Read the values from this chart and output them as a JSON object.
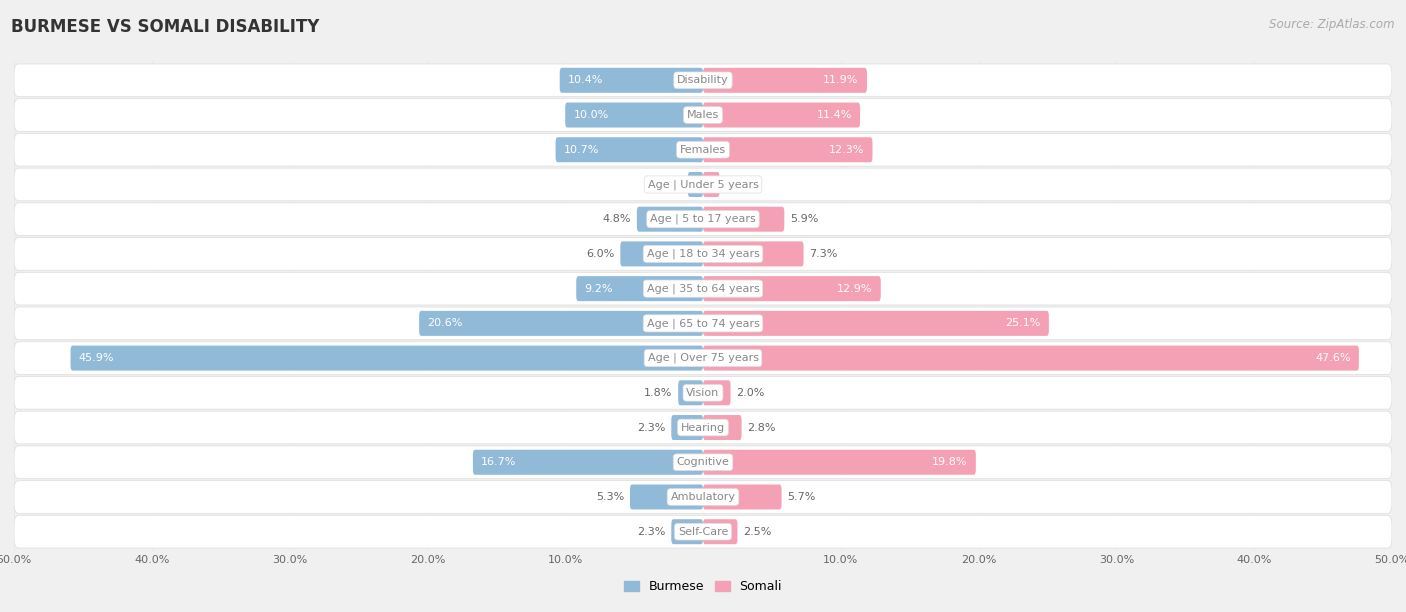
{
  "title": "BURMESE VS SOMALI DISABILITY",
  "source": "Source: ZipAtlas.com",
  "categories": [
    "Disability",
    "Males",
    "Females",
    "Age | Under 5 years",
    "Age | 5 to 17 years",
    "Age | 18 to 34 years",
    "Age | 35 to 64 years",
    "Age | 65 to 74 years",
    "Age | Over 75 years",
    "Vision",
    "Hearing",
    "Cognitive",
    "Ambulatory",
    "Self-Care"
  ],
  "burmese": [
    10.4,
    10.0,
    10.7,
    1.1,
    4.8,
    6.0,
    9.2,
    20.6,
    45.9,
    1.8,
    2.3,
    16.7,
    5.3,
    2.3
  ],
  "somali": [
    11.9,
    11.4,
    12.3,
    1.2,
    5.9,
    7.3,
    12.9,
    25.1,
    47.6,
    2.0,
    2.8,
    19.8,
    5.7,
    2.5
  ],
  "max_val": 50.0,
  "burmese_color": "#91b9d8",
  "somali_color": "#f4a0b5",
  "bar_height": 0.72,
  "bg_color": "#f0f0f0",
  "row_bg_color": "#ffffff",
  "row_alt_color": "#f8f8f8",
  "label_color": "#666666",
  "category_color": "#888888",
  "title_fontsize": 12,
  "source_fontsize": 8.5,
  "label_fontsize": 8,
  "cat_fontsize": 8,
  "legend_fontsize": 9,
  "axis_label_fontsize": 8
}
